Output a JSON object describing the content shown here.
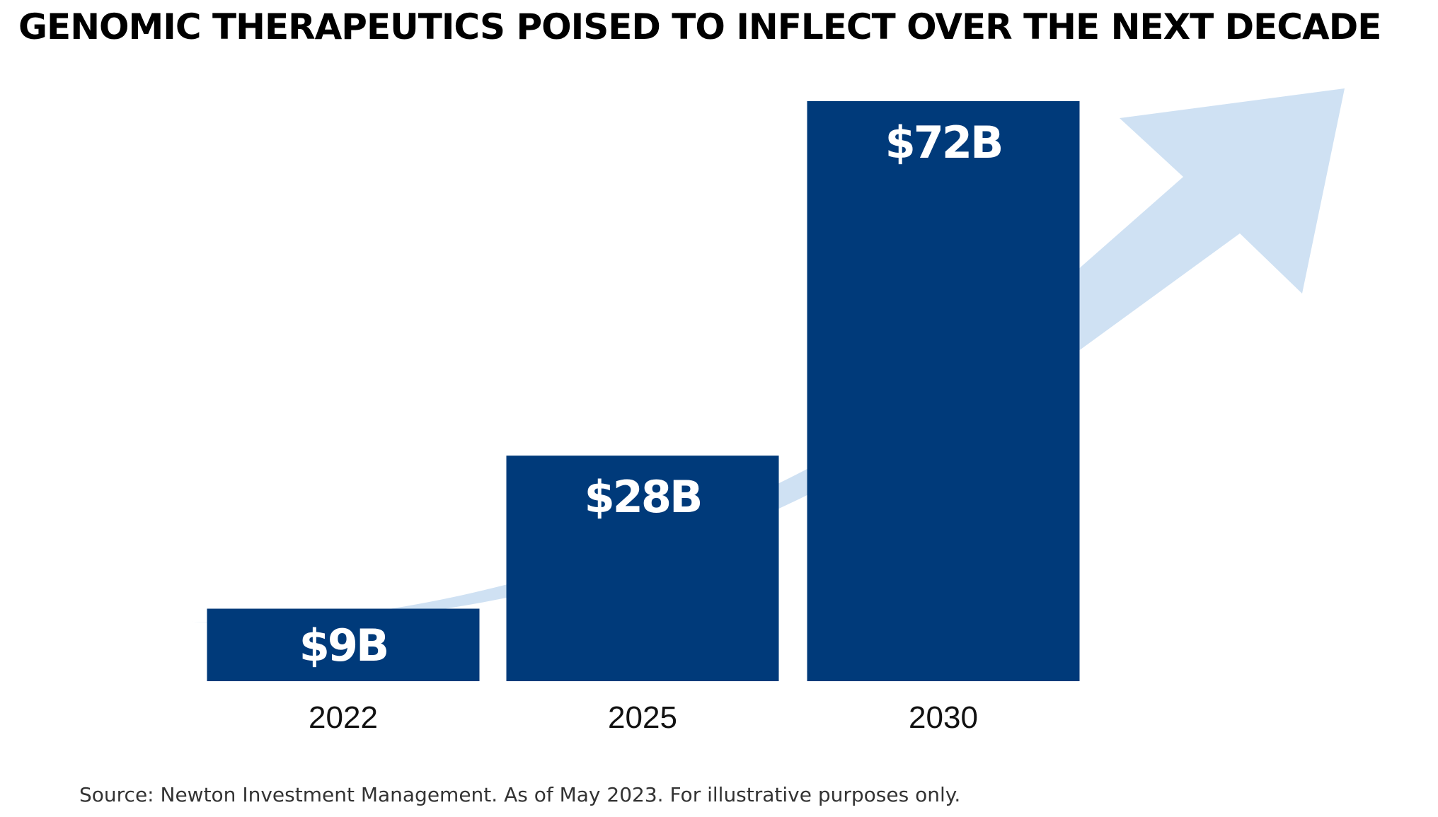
{
  "chart_data": {
    "type": "bar",
    "title": "GENOMIC THERAPEUTICS POISED TO INFLECT OVER THE NEXT DECADE",
    "categories": [
      "2022",
      "2025",
      "2030"
    ],
    "values": [
      9,
      28,
      72
    ],
    "value_labels": [
      "$9B",
      "$28B",
      "$72B"
    ],
    "ylim": [
      0,
      72
    ],
    "xlabel": "",
    "ylabel": "",
    "grid": false,
    "legend": "none",
    "bar_color": "#003a7a",
    "arrow_color": "#cfe1f3",
    "label_color": "#ffffff"
  },
  "source": "Source: Newton Investment Management. As of May 2023. For illustrative purposes only."
}
